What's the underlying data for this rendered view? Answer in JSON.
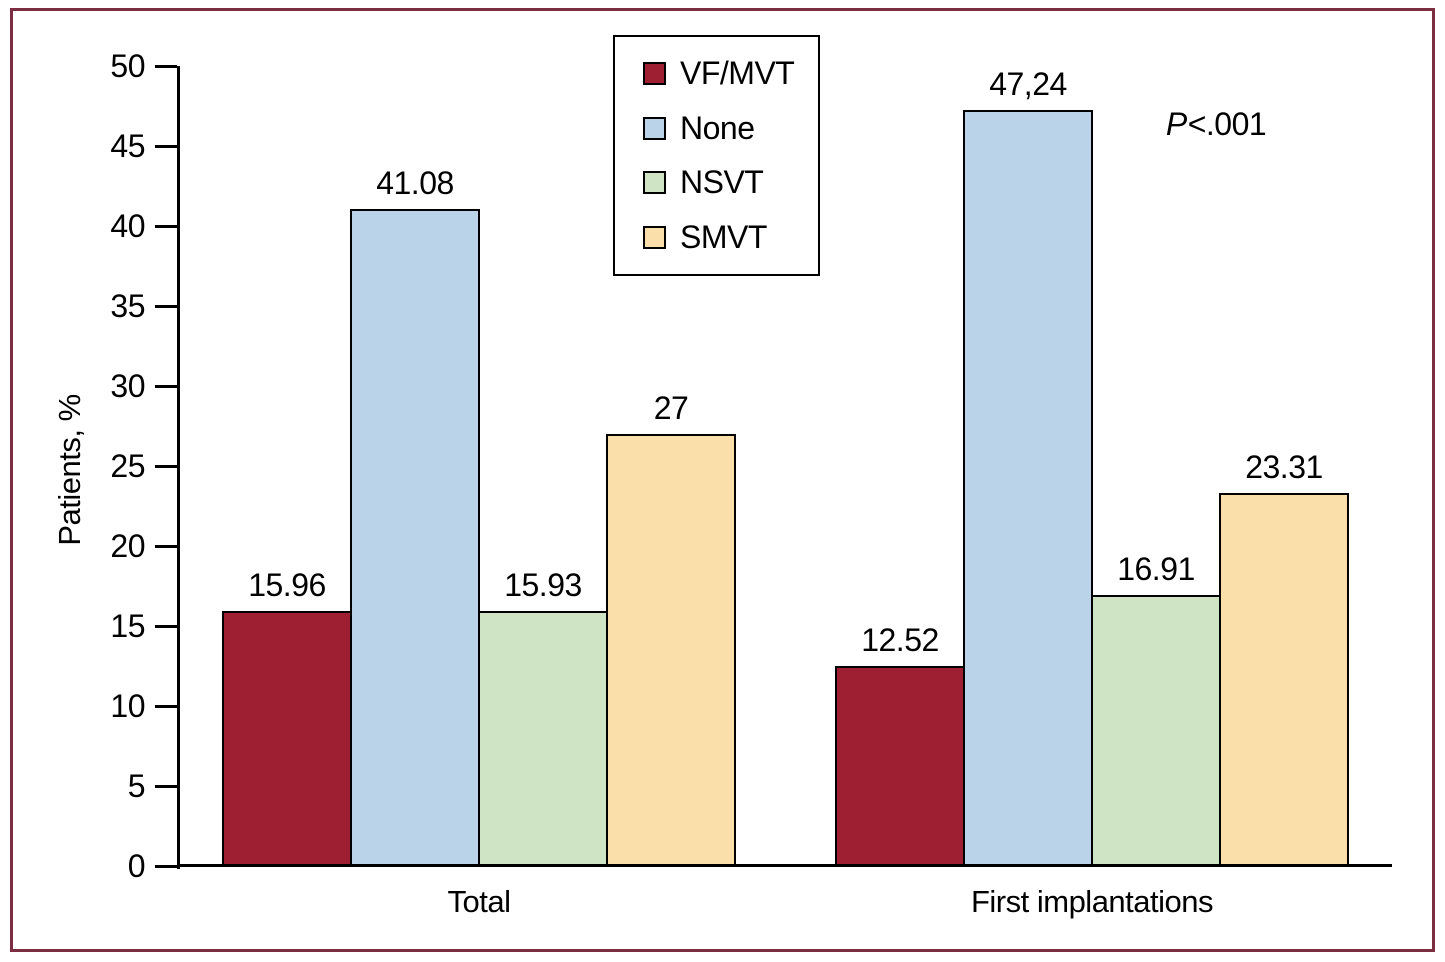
{
  "figure": {
    "border_color": "#7D2D41",
    "p_label": {
      "italic": "P",
      "rest": "<.001"
    }
  },
  "chart_data": {
    "type": "bar",
    "title": "",
    "xlabel": "",
    "ylabel": "Patients, %",
    "ylim": [
      0,
      50
    ],
    "yticks": [
      0,
      5,
      10,
      15,
      20,
      25,
      30,
      35,
      40,
      45,
      50
    ],
    "grid": false,
    "categories": [
      "Total",
      "First implantations"
    ],
    "series": [
      {
        "name": "VF/MVT",
        "color": "#9E1E32",
        "values": [
          15.96,
          12.52
        ],
        "labels": [
          "15.96",
          "12.52"
        ]
      },
      {
        "name": "None",
        "color": "#BAD3E9",
        "values": [
          41.08,
          47.24
        ],
        "labels": [
          "41.08",
          "47,24"
        ]
      },
      {
        "name": "NSVT",
        "color": "#CFE4C4",
        "values": [
          15.93,
          16.91
        ],
        "labels": [
          "15.93",
          "16.91"
        ]
      },
      {
        "name": "SMVT",
        "color": "#FADFAA",
        "values": [
          27,
          23.31
        ],
        "labels": [
          "27",
          "23.31"
        ]
      }
    ],
    "legend": {
      "position": "top-center"
    },
    "annotation": "P<.001"
  }
}
